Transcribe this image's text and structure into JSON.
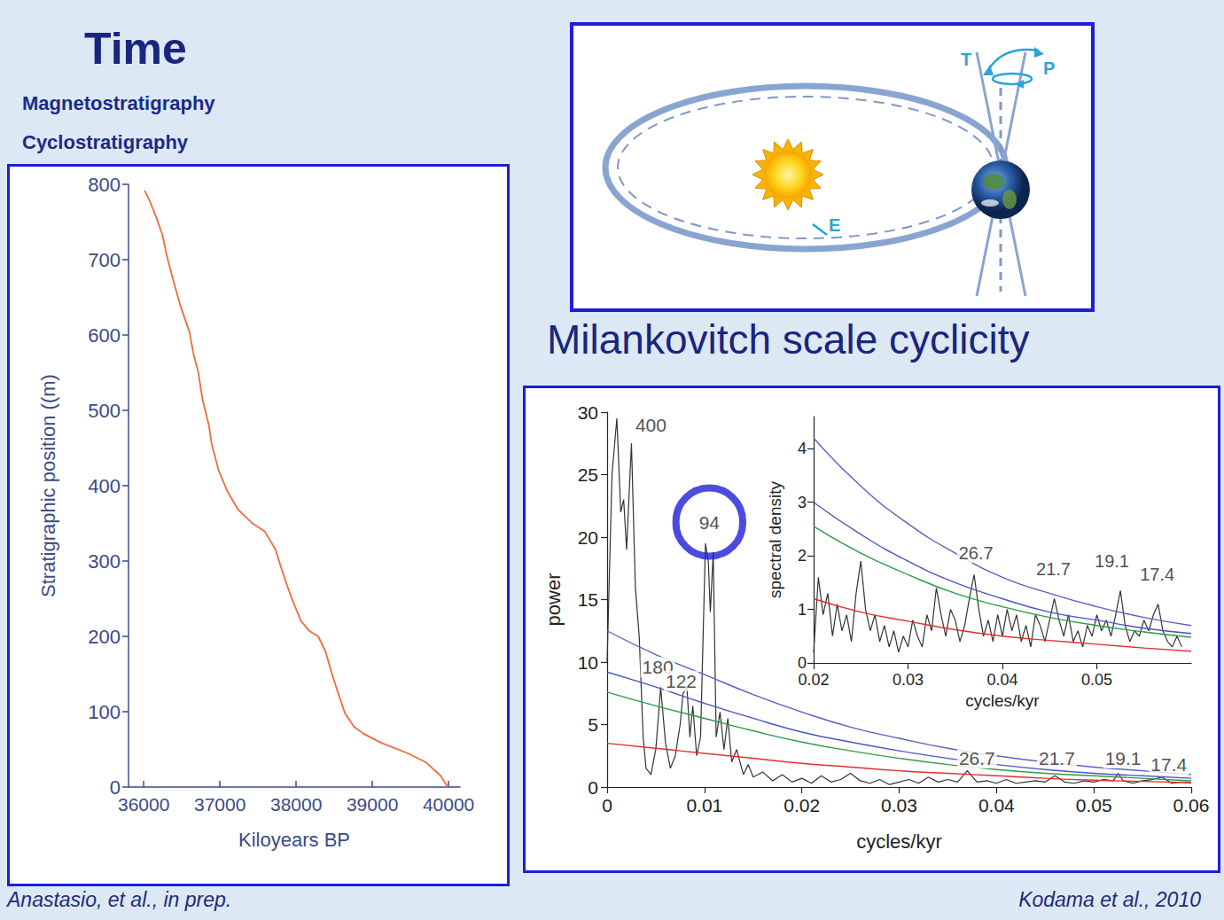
{
  "slide": {
    "title": "Time",
    "subtitles": [
      "Magnetostratigraphy",
      "Cyclostratigraphy"
    ],
    "heading": "Milankovitch scale cyclicity",
    "sources": [
      "Anastasio, et al., in prep.",
      "Kodama et al., 2010"
    ]
  },
  "diagram": {
    "labels": [
      "T",
      "P",
      "E"
    ]
  },
  "chart_data": [
    {
      "type": "line",
      "x_label": "Kiloyears BP",
      "y_label": "Stratigraphic position ((m)",
      "color": "#f06a3c",
      "x": [
        39990,
        39895,
        39700,
        39460,
        39110,
        38880,
        38760,
        38640,
        38525,
        38470,
        38385,
        38290,
        38175,
        38060,
        37940,
        37880,
        37800,
        37730,
        37590,
        37415,
        37240,
        37100,
        36980,
        36890,
        36855,
        36770,
        36715,
        36655,
        36600,
        36480,
        36400,
        36305,
        36245,
        36165,
        36070,
        36010
      ],
      "values": [
        0,
        15,
        33,
        45,
        59,
        71,
        80,
        98,
        133,
        150,
        180,
        200,
        207,
        221,
        251,
        268,
        292,
        315,
        339,
        351,
        368,
        392,
        421,
        456,
        480,
        515,
        551,
        574,
        604,
        639,
        668,
        704,
        733,
        756,
        780,
        792
      ],
      "xlim": [
        35800,
        40150
      ],
      "xticks": [
        36000,
        37000,
        38000,
        39000,
        40000
      ],
      "ylim": [
        0,
        800
      ],
      "yticks": [
        0,
        100,
        200,
        300,
        400,
        500,
        600,
        700,
        800
      ],
      "grid": false
    },
    {
      "type": "line",
      "x_label": "cycles/kyr",
      "y_label": "power",
      "xlim": [
        0,
        0.06
      ],
      "xticks": [
        0,
        0.01,
        0.02,
        0.03,
        0.04,
        0.05,
        0.06
      ],
      "ylim": [
        0,
        30
      ],
      "yticks": [
        0,
        5,
        10,
        15,
        20,
        25,
        30
      ],
      "grid": false,
      "series": [
        {
          "color": "#333333",
          "x": [
            0,
            0.0005,
            0.001,
            0.0014,
            0.0017,
            0.002,
            0.0025,
            0.0029,
            0.0033,
            0.0037,
            0.004,
            0.0045,
            0.005,
            0.0055,
            0.006,
            0.0065,
            0.007,
            0.0075,
            0.0078,
            0.0082,
            0.0085,
            0.0088,
            0.0092,
            0.0096,
            0.0101,
            0.0104,
            0.0106,
            0.0109,
            0.0112,
            0.0116,
            0.012,
            0.0124,
            0.0128,
            0.0133,
            0.014,
            0.0145,
            0.015,
            0.016,
            0.017,
            0.018,
            0.019,
            0.02,
            0.021,
            0.022,
            0.023,
            0.024,
            0.025,
            0.026,
            0.027,
            0.028,
            0.029,
            0.03,
            0.031,
            0.032,
            0.033,
            0.034,
            0.035,
            0.036,
            0.037,
            0.038,
            0.039,
            0.04,
            0.041,
            0.042,
            0.043,
            0.044,
            0.045,
            0.046,
            0.047,
            0.048,
            0.049,
            0.05,
            0.051,
            0.052,
            0.0525,
            0.053,
            0.054,
            0.055,
            0.056,
            0.057,
            0.058,
            0.059,
            0.06
          ],
          "values": [
            10,
            25,
            29.5,
            22,
            23,
            19,
            27.5,
            16,
            12,
            4,
            1.5,
            1,
            3,
            8,
            3.5,
            1.5,
            2.5,
            5,
            7.5,
            8,
            4,
            6.5,
            2.5,
            4,
            19.5,
            18,
            14,
            18.8,
            4,
            6,
            3,
            5.5,
            2,
            3,
            1,
            1.8,
            0.8,
            1.2,
            0.5,
            1,
            0.4,
            0.7,
            0.3,
            0.9,
            0.4,
            0.6,
            1.1,
            0.5,
            0.3,
            0.6,
            0.2,
            0.4,
            0.6,
            0.3,
            0.8,
            0.4,
            0.6,
            0.4,
            1.3,
            0.4,
            0.5,
            0.3,
            0.6,
            0.3,
            0.4,
            0.5,
            0.4,
            0.9,
            0.4,
            0.3,
            0.5,
            0.4,
            0.6,
            0.5,
            1.1,
            0.5,
            0.3,
            0.5,
            0.6,
            0.8,
            0.3,
            0.4,
            0.3
          ]
        },
        {
          "color": "#5a5fc4",
          "x": [
            0,
            0.005,
            0.01,
            0.015,
            0.02,
            0.025,
            0.03,
            0.035,
            0.04,
            0.045,
            0.05,
            0.055,
            0.06
          ],
          "values": [
            12.5,
            10.6,
            9.0,
            7.4,
            6.0,
            4.8,
            3.9,
            3.1,
            2.5,
            2.0,
            1.6,
            1.3,
            1.0
          ]
        },
        {
          "color": "#4a55c8",
          "x": [
            0,
            0.005,
            0.01,
            0.015,
            0.02,
            0.025,
            0.03,
            0.035,
            0.04,
            0.045,
            0.05,
            0.055,
            0.06
          ],
          "values": [
            9.2,
            8.0,
            6.7,
            5.5,
            4.4,
            3.6,
            2.9,
            2.3,
            1.8,
            1.4,
            1.1,
            0.9,
            0.7
          ]
        },
        {
          "color": "#2e9b4a",
          "x": [
            0,
            0.005,
            0.01,
            0.015,
            0.02,
            0.025,
            0.03,
            0.035,
            0.04,
            0.045,
            0.05,
            0.055,
            0.06
          ],
          "values": [
            7.6,
            6.5,
            5.5,
            4.5,
            3.6,
            2.9,
            2.3,
            1.8,
            1.4,
            1.1,
            0.9,
            0.7,
            0.5
          ]
        },
        {
          "color": "#e03030",
          "x": [
            0,
            0.005,
            0.01,
            0.015,
            0.02,
            0.025,
            0.03,
            0.035,
            0.04,
            0.045,
            0.05,
            0.055,
            0.06
          ],
          "values": [
            3.5,
            3.1,
            2.7,
            2.3,
            1.9,
            1.6,
            1.3,
            1.1,
            0.9,
            0.7,
            0.55,
            0.45,
            0.35
          ]
        }
      ],
      "annotations": [
        {
          "text": "400",
          "x": 0.0045,
          "y": 29
        },
        {
          "text": "94",
          "x": 0.0105,
          "y": 21.2,
          "circled": true
        },
        {
          "text": "180",
          "x": 0.0052,
          "y": 9.6
        },
        {
          "text": "122",
          "x": 0.0076,
          "y": 8.5
        },
        {
          "text": "26.7",
          "x": 0.038,
          "y": 2.3
        },
        {
          "text": "21.7",
          "x": 0.0462,
          "y": 2.3
        },
        {
          "text": "19.1",
          "x": 0.053,
          "y": 2.3
        },
        {
          "text": "17.4",
          "x": 0.0577,
          "y": 1.8
        }
      ]
    },
    {
      "type": "line",
      "x_label": "cycles/kyr",
      "y_label": "spectral density",
      "xlim": [
        0.02,
        0.06
      ],
      "xticks": [
        0.02,
        0.03,
        0.04,
        0.05
      ],
      "ylim": [
        0,
        4.6
      ],
      "yticks": [
        0,
        1,
        2,
        3,
        4
      ],
      "grid": false,
      "series": [
        {
          "color": "#333333",
          "x": [
            0.02,
            0.0205,
            0.021,
            0.0215,
            0.022,
            0.0225,
            0.023,
            0.0235,
            0.024,
            0.0245,
            0.025,
            0.0255,
            0.026,
            0.0265,
            0.027,
            0.0275,
            0.028,
            0.0285,
            0.029,
            0.0295,
            0.03,
            0.0305,
            0.031,
            0.0315,
            0.032,
            0.0325,
            0.033,
            0.0335,
            0.034,
            0.0345,
            0.035,
            0.0355,
            0.036,
            0.0365,
            0.037,
            0.0375,
            0.038,
            0.0385,
            0.039,
            0.0395,
            0.04,
            0.0405,
            0.041,
            0.0415,
            0.042,
            0.0425,
            0.043,
            0.0435,
            0.044,
            0.0445,
            0.045,
            0.0455,
            0.046,
            0.0465,
            0.047,
            0.0475,
            0.048,
            0.0485,
            0.049,
            0.0495,
            0.05,
            0.0505,
            0.051,
            0.0515,
            0.052,
            0.0525,
            0.053,
            0.0535,
            0.054,
            0.0545,
            0.055,
            0.0555,
            0.056,
            0.0565,
            0.057,
            0.0575,
            0.058,
            0.0585,
            0.059
          ],
          "values": [
            0.2,
            1.6,
            0.9,
            1.3,
            0.5,
            1.1,
            0.6,
            0.9,
            0.4,
            1.3,
            1.9,
            1.0,
            0.6,
            0.9,
            0.4,
            0.7,
            0.3,
            0.6,
            0.2,
            0.5,
            0.3,
            0.8,
            0.5,
            0.3,
            0.9,
            0.6,
            1.4,
            0.9,
            0.5,
            1.0,
            0.8,
            0.4,
            0.7,
            1.2,
            1.65,
            1.0,
            0.5,
            0.8,
            0.4,
            0.9,
            0.5,
            1.0,
            0.6,
            0.9,
            0.4,
            0.7,
            0.3,
            0.9,
            0.7,
            0.4,
            0.8,
            1.2,
            0.8,
            0.5,
            0.9,
            0.4,
            0.6,
            0.3,
            0.7,
            0.5,
            0.9,
            0.6,
            0.8,
            0.5,
            0.9,
            1.35,
            0.7,
            0.4,
            0.6,
            0.5,
            0.8,
            0.6,
            0.9,
            1.1,
            0.6,
            0.4,
            0.3,
            0.5,
            0.3
          ]
        },
        {
          "color": "#5a5fc4",
          "x": [
            0.02,
            0.025,
            0.03,
            0.035,
            0.04,
            0.045,
            0.05,
            0.055,
            0.06
          ],
          "values": [
            4.2,
            3.3,
            2.6,
            2.05,
            1.6,
            1.3,
            1.05,
            0.85,
            0.7
          ]
        },
        {
          "color": "#4a55c8",
          "x": [
            0.02,
            0.025,
            0.03,
            0.035,
            0.04,
            0.045,
            0.05,
            0.055,
            0.06
          ],
          "values": [
            3.0,
            2.4,
            1.9,
            1.5,
            1.2,
            0.95,
            0.8,
            0.65,
            0.55
          ]
        },
        {
          "color": "#2e9b4a",
          "x": [
            0.02,
            0.025,
            0.03,
            0.035,
            0.04,
            0.045,
            0.05,
            0.055,
            0.06
          ],
          "values": [
            2.55,
            2.05,
            1.65,
            1.3,
            1.05,
            0.85,
            0.7,
            0.58,
            0.48
          ]
        },
        {
          "color": "#e03030",
          "x": [
            0.02,
            0.025,
            0.03,
            0.035,
            0.04,
            0.045,
            0.05,
            0.055,
            0.06
          ],
          "values": [
            1.2,
            0.95,
            0.78,
            0.62,
            0.5,
            0.42,
            0.35,
            0.28,
            0.22
          ]
        }
      ],
      "annotations": [
        {
          "text": "26.7",
          "x": 0.0372,
          "y": 2.05
        },
        {
          "text": "21.7",
          "x": 0.0454,
          "y": 1.75
        },
        {
          "text": "19.1",
          "x": 0.0516,
          "y": 1.9
        },
        {
          "text": "17.4",
          "x": 0.0564,
          "y": 1.65
        }
      ]
    }
  ]
}
